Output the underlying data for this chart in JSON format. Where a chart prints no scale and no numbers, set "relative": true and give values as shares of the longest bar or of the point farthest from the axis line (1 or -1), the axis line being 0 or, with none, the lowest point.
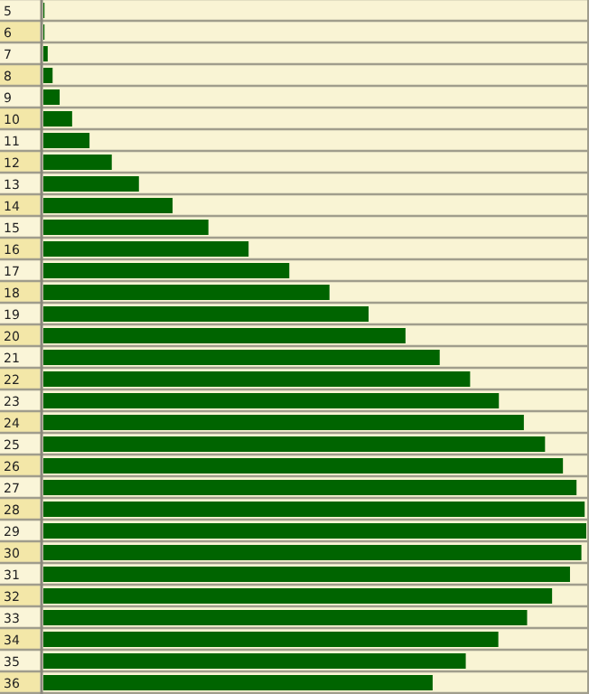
{
  "chart_data": {
    "type": "bar",
    "orientation": "horizontal",
    "relative": true,
    "color": "#006400",
    "categories": [
      "5",
      "6",
      "7",
      "8",
      "9",
      "10",
      "11",
      "12",
      "13",
      "14",
      "15",
      "16",
      "17",
      "18",
      "19",
      "20",
      "21",
      "22",
      "23",
      "24",
      "25",
      "26",
      "27",
      "28",
      "29",
      "30",
      "31",
      "32",
      "33",
      "34",
      "35",
      "36"
    ],
    "values": [
      0.002,
      0.002,
      0.008,
      0.017,
      0.03,
      0.053,
      0.085,
      0.126,
      0.176,
      0.238,
      0.304,
      0.378,
      0.453,
      0.527,
      0.599,
      0.667,
      0.73,
      0.786,
      0.839,
      0.885,
      0.924,
      0.957,
      0.982,
      0.997,
      1,
      0.991,
      0.97,
      0.937,
      0.891,
      0.838,
      0.778,
      0.717
    ],
    "grid": false
  }
}
